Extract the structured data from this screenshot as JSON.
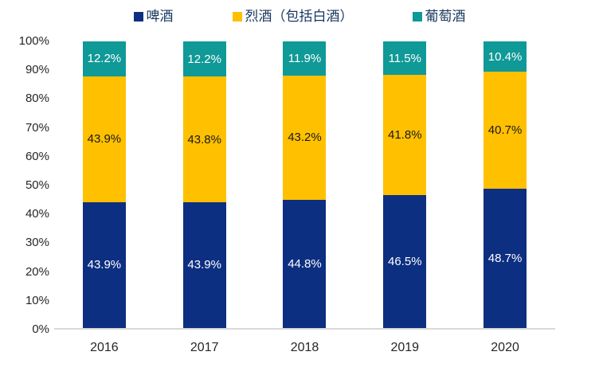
{
  "chart_data": {
    "type": "bar",
    "stacked": true,
    "percent_stacked": true,
    "title": "",
    "xlabel": "",
    "ylabel": "",
    "ylim": [
      0,
      100
    ],
    "unit": "%",
    "grid": false,
    "legend_position": "top",
    "categories": [
      "2016",
      "2017",
      "2018",
      "2019",
      "2020"
    ],
    "y_ticks": [
      "100%",
      "90%",
      "80%",
      "70%",
      "60%",
      "50%",
      "40%",
      "30%",
      "20%",
      "10%",
      "0%"
    ],
    "axis_line_color": "#d9d9d9",
    "legend_text_color": "#17375e",
    "series": [
      {
        "id": "beer",
        "name": "啤酒",
        "color": "#0d2f81",
        "label_color": "#ffffff",
        "values": [
          43.9,
          43.9,
          44.8,
          46.5,
          48.7
        ],
        "labels": [
          "43.9%",
          "43.9%",
          "44.8%",
          "46.5%",
          "48.7%"
        ]
      },
      {
        "id": "spirits",
        "name": "烈酒（包括白酒）",
        "color": "#ffc000",
        "label_color": "#1a1a1a",
        "values": [
          43.9,
          43.8,
          43.2,
          41.8,
          40.7
        ],
        "labels": [
          "43.9%",
          "43.8%",
          "43.2%",
          "41.8%",
          "40.7%"
        ]
      },
      {
        "id": "wine",
        "name": "葡萄酒",
        "color": "#0f9997",
        "label_color": "#ffffff",
        "values": [
          12.2,
          12.2,
          11.9,
          11.5,
          10.4
        ],
        "labels": [
          "12.2%",
          "12.2%",
          "11.9%",
          "11.5%",
          "10.4%"
        ]
      }
    ]
  }
}
